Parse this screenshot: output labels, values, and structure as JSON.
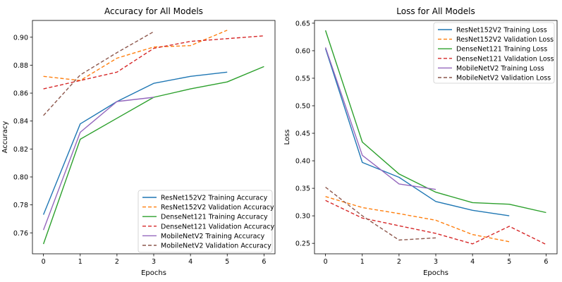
{
  "chart_data": [
    {
      "type": "line",
      "title": "Accuracy for All Models",
      "xlabel": "Epochs",
      "ylabel": "Accuracy",
      "xlim": [
        -0.3,
        6.3
      ],
      "ylim": [
        0.745,
        0.912
      ],
      "xticks": [
        0,
        1,
        2,
        3,
        4,
        5,
        6
      ],
      "yticks": [
        0.76,
        0.78,
        0.8,
        0.82,
        0.84,
        0.86,
        0.88,
        0.9
      ],
      "ytick_labels": [
        "0.76",
        "0.78",
        "0.80",
        "0.82",
        "0.84",
        "0.86",
        "0.88",
        "0.90"
      ],
      "grid": false,
      "legend_position": "bottom-right",
      "series": [
        {
          "name": "ResNet152V2 Training Accuracy",
          "color": "#1f77b4",
          "dash": "solid",
          "x": [
            0,
            1,
            2,
            3,
            4,
            5
          ],
          "values": [
            0.773,
            0.838,
            0.854,
            0.867,
            0.872,
            0.875
          ]
        },
        {
          "name": "ResNet152V2 Validation Accuracy",
          "color": "#ff7f0e",
          "dash": "dashed",
          "x": [
            0,
            1,
            2,
            3,
            4,
            5
          ],
          "values": [
            0.872,
            0.869,
            0.885,
            0.893,
            0.894,
            0.905
          ]
        },
        {
          "name": "DenseNet121 Training Accuracy",
          "color": "#2ca02c",
          "dash": "solid",
          "x": [
            0,
            1,
            2,
            3,
            4,
            5,
            6
          ],
          "values": [
            0.752,
            0.827,
            0.842,
            0.857,
            0.863,
            0.868,
            0.879
          ]
        },
        {
          "name": "DenseNet121 Validation Accuracy",
          "color": "#d62728",
          "dash": "dashed",
          "x": [
            0,
            1,
            2,
            3,
            4,
            5,
            6
          ],
          "values": [
            0.863,
            0.869,
            0.875,
            0.892,
            0.897,
            0.899,
            0.901
          ]
        },
        {
          "name": "MobileNetV2 Training Accuracy",
          "color": "#9467bd",
          "dash": "solid",
          "x": [
            0,
            1,
            2,
            3
          ],
          "values": [
            0.762,
            0.832,
            0.854,
            0.857
          ]
        },
        {
          "name": "MobileNetV2 Validation Accuracy",
          "color": "#8c564b",
          "dash": "dashed",
          "x": [
            0,
            1,
            2,
            3
          ],
          "values": [
            0.844,
            0.873,
            0.889,
            0.904
          ]
        }
      ]
    },
    {
      "type": "line",
      "title": "Loss for All Models",
      "xlabel": "Epochs",
      "ylabel": "Loss",
      "xlim": [
        -0.3,
        6.3
      ],
      "ylim": [
        0.231,
        0.655
      ],
      "xticks": [
        0,
        1,
        2,
        3,
        4,
        5,
        6
      ],
      "yticks": [
        0.25,
        0.3,
        0.35,
        0.4,
        0.45,
        0.5,
        0.55,
        0.6,
        0.65
      ],
      "ytick_labels": [
        "0.25",
        "0.30",
        "0.35",
        "0.40",
        "0.45",
        "0.50",
        "0.55",
        "0.60",
        "0.65"
      ],
      "grid": false,
      "legend_position": "top-right",
      "series": [
        {
          "name": "ResNet152V2 Training Loss",
          "color": "#1f77b4",
          "dash": "solid",
          "x": [
            0,
            1,
            2,
            3,
            4,
            5
          ],
          "values": [
            0.604,
            0.397,
            0.37,
            0.326,
            0.31,
            0.3
          ]
        },
        {
          "name": "ResNet152V2 Validation Loss",
          "color": "#ff7f0e",
          "dash": "dashed",
          "x": [
            0,
            1,
            2,
            3,
            4,
            5
          ],
          "values": [
            0.335,
            0.315,
            0.304,
            0.292,
            0.266,
            0.253
          ]
        },
        {
          "name": "DenseNet121 Training Loss",
          "color": "#2ca02c",
          "dash": "solid",
          "x": [
            0,
            1,
            2,
            3,
            4,
            5,
            6
          ],
          "values": [
            0.637,
            0.434,
            0.376,
            0.343,
            0.324,
            0.321,
            0.306
          ]
        },
        {
          "name": "DenseNet121 Validation Loss",
          "color": "#d62728",
          "dash": "dashed",
          "x": [
            0,
            1,
            2,
            3,
            4,
            5,
            6
          ],
          "values": [
            0.328,
            0.296,
            0.282,
            0.268,
            0.249,
            0.281,
            0.248
          ]
        },
        {
          "name": "MobileNetV2 Training Loss",
          "color": "#9467bd",
          "dash": "solid",
          "x": [
            0,
            1,
            2,
            3
          ],
          "values": [
            0.606,
            0.41,
            0.358,
            0.348
          ]
        },
        {
          "name": "MobileNetV2 Validation Loss",
          "color": "#8c564b",
          "dash": "dashed",
          "x": [
            0,
            1,
            2,
            3
          ],
          "values": [
            0.352,
            0.3,
            0.256,
            0.26
          ]
        }
      ]
    }
  ]
}
